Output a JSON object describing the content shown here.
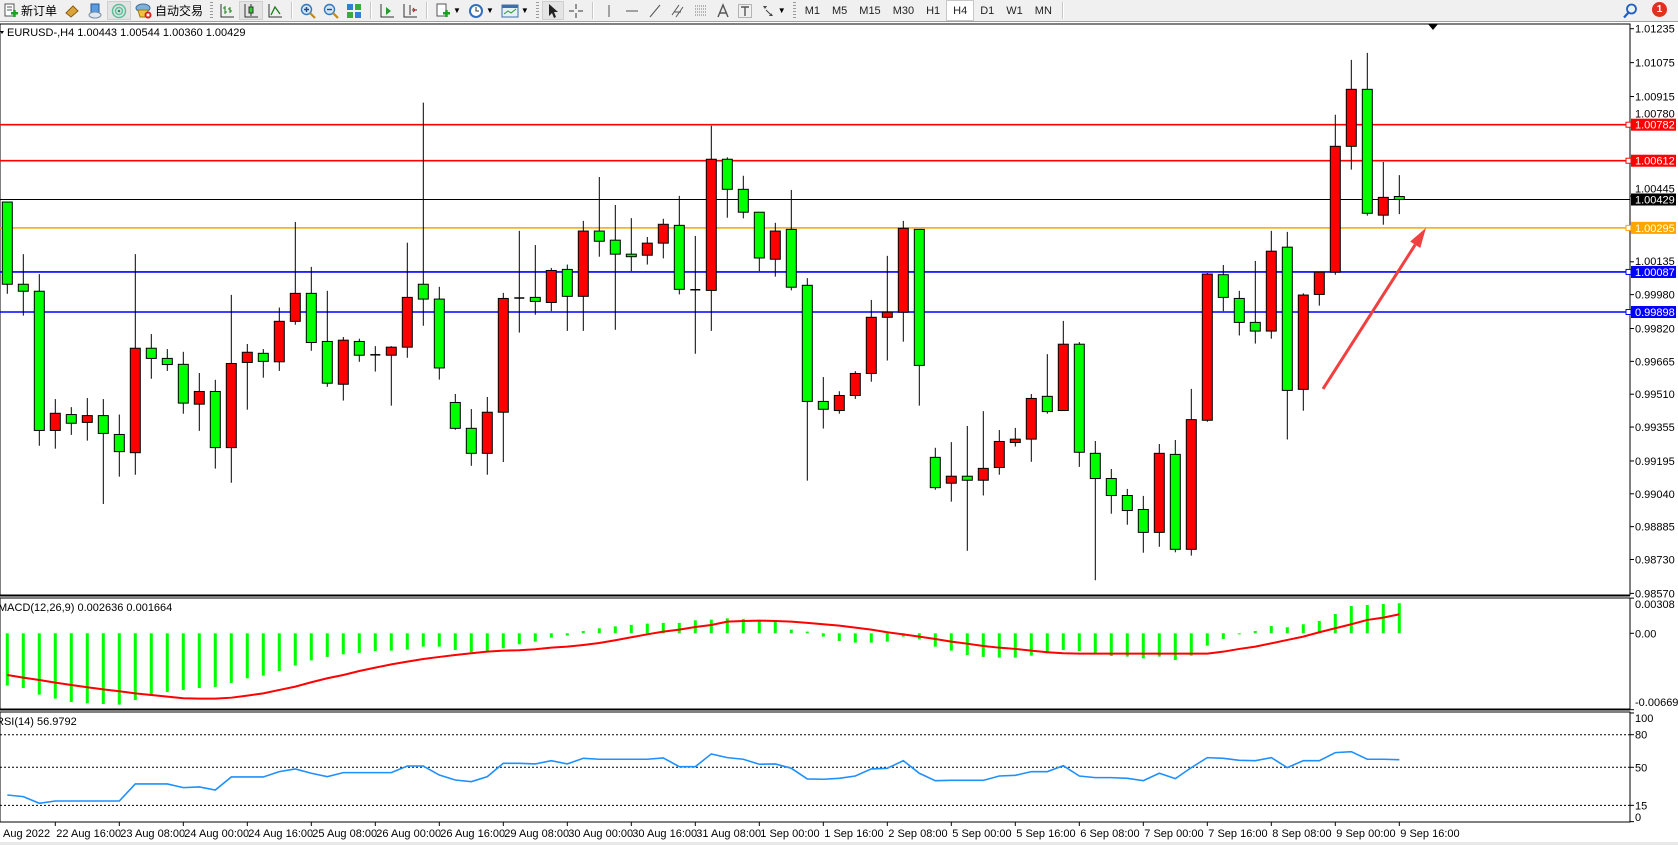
{
  "toolbar": {
    "new_order_label": "新订单",
    "auto_trading_label": "自动交易",
    "timeframes": [
      "M1",
      "M5",
      "M15",
      "M30",
      "H1",
      "H4",
      "D1",
      "W1",
      "MN"
    ],
    "active_timeframe": "H4",
    "notification_count": "1"
  },
  "chart": {
    "header": "EURUSD-,H4  1.00443 1.00544 1.00360 1.00429",
    "symbol": "EURUSD-",
    "timeframe": "H4",
    "bull_color": "#ff0000",
    "bear_color": "#00ff00",
    "price_ticks": [
      "1.01235",
      "1.01075",
      "1.00915",
      "1.00780",
      "1.00445",
      "1.00135",
      "0.99980",
      "0.99820",
      "0.99665",
      "0.99510",
      "0.99355",
      "0.99195",
      "0.99040",
      "0.98885",
      "0.98730",
      "0.98570"
    ],
    "price_range": [
      0.9857,
      1.01235
    ],
    "hlines": [
      {
        "price": "1.00782",
        "color": "#ff0000",
        "text_color": "#ffffff"
      },
      {
        "price": "1.00612",
        "color": "#ff0000",
        "text_color": "#ffffff"
      },
      {
        "price": "1.00429",
        "color": "#000000",
        "text_color": "#ffffff",
        "bid": true
      },
      {
        "price": "1.00295",
        "color": "#ffa500",
        "text_color": "#ffffff"
      },
      {
        "price": "1.00087",
        "color": "#0000ff",
        "text_color": "#ffffff"
      },
      {
        "price": "0.99898",
        "color": "#0000ff",
        "text_color": "#ffffff"
      }
    ],
    "annotation_arrow": {
      "color": "#f04040",
      "from_price": 0.99535,
      "to_price": 1.00295
    },
    "candles": [
      [
        1.00417,
        1.00417,
        0.99984,
        1.00029
      ],
      [
        1.00029,
        1.00171,
        0.99881,
        0.99996
      ],
      [
        0.99996,
        1.00077,
        0.99267,
        0.99339
      ],
      [
        0.99339,
        0.99487,
        0.99253,
        0.9942
      ],
      [
        0.99414,
        0.99449,
        0.99318,
        0.99373
      ],
      [
        0.99377,
        0.99492,
        0.99291,
        0.99409
      ],
      [
        0.99409,
        0.99487,
        0.98992,
        0.99325
      ],
      [
        0.9932,
        0.99414,
        0.99121,
        0.99239
      ],
      [
        0.99234,
        1.00171,
        0.9913,
        0.99727
      ],
      [
        0.99727,
        0.99794,
        0.99583,
        0.99679
      ],
      [
        0.99679,
        0.99723,
        0.9962,
        0.9965
      ],
      [
        0.99651,
        0.9971,
        0.99418,
        0.99468
      ],
      [
        0.99463,
        0.9961,
        0.99337,
        0.99523
      ],
      [
        0.99523,
        0.99578,
        0.99159,
        0.99258
      ],
      [
        0.99258,
        0.99979,
        0.99092,
        0.99655
      ],
      [
        0.9966,
        0.99747,
        0.99437,
        0.99708
      ],
      [
        0.99703,
        0.99723,
        0.99588,
        0.99665
      ],
      [
        0.99663,
        0.99919,
        0.9962,
        0.99854
      ],
      [
        0.99854,
        1.00323,
        0.99838,
        0.99986
      ],
      [
        0.99986,
        1.00111,
        0.99715,
        0.99754
      ],
      [
        0.99759,
        0.99998,
        0.99545,
        0.99562
      ],
      [
        0.99557,
        0.9978,
        0.9948,
        0.99765
      ],
      [
        0.99759,
        0.99772,
        0.99663,
        0.99694
      ],
      [
        0.99696,
        0.99737,
        0.99617,
        0.99696
      ],
      [
        0.99694,
        0.99737,
        0.99456,
        0.99732
      ],
      [
        0.99732,
        1.00225,
        0.99682,
        0.99967
      ],
      [
        1.00029,
        1.00886,
        0.99833,
        0.99959
      ],
      [
        0.99959,
        1.00017,
        0.99579,
        0.99634
      ],
      [
        0.99471,
        0.99511,
        0.99342,
        0.99349
      ],
      [
        0.99349,
        0.9944,
        0.99172,
        0.99231
      ],
      [
        0.99231,
        0.99497,
        0.9913,
        0.99425
      ],
      [
        0.99425,
        0.99988,
        0.9919,
        0.99962
      ],
      [
        0.99964,
        1.00281,
        0.99801,
        0.99964
      ],
      [
        0.99967,
        1.00214,
        0.99885,
        0.99948
      ],
      [
        0.99943,
        1.00106,
        0.99902,
        1.00094
      ],
      [
        1.00099,
        1.00122,
        0.99809,
        0.99972
      ],
      [
        0.99972,
        1.00328,
        0.99809,
        1.0028
      ],
      [
        1.0028,
        1.00535,
        1.00159,
        1.00232
      ],
      [
        1.00237,
        1.00403,
        0.99814,
        1.00171
      ],
      [
        1.00171,
        1.00341,
        1.00091,
        1.00159
      ],
      [
        1.00166,
        1.00252,
        1.00122,
        1.00223
      ],
      [
        1.00223,
        1.00338,
        1.00151,
        1.00312
      ],
      [
        1.00307,
        1.00446,
        0.99981,
        1.00005
      ],
      [
        1.00003,
        1.00257,
        0.99701,
        1.00003
      ],
      [
        1.0,
        1.00777,
        0.99809,
        1.00619
      ],
      [
        1.00619,
        1.00628,
        1.00343,
        1.00477
      ],
      [
        1.00477,
        1.00541,
        1.0034,
        1.00369
      ],
      [
        1.00369,
        1.00369,
        1.00091,
        1.00153
      ],
      [
        1.00147,
        1.00319,
        1.00065,
        1.0028
      ],
      [
        1.00288,
        1.00474,
        1.0,
        1.00015
      ],
      [
        1.00024,
        1.00058,
        0.99102,
        0.99476
      ],
      [
        0.99476,
        0.99591,
        0.99348,
        0.99439
      ],
      [
        0.99433,
        0.99524,
        0.99418,
        0.99504
      ],
      [
        0.99504,
        0.99619,
        0.99488,
        0.99608
      ],
      [
        0.99608,
        0.99955,
        0.99569,
        0.99873
      ],
      [
        0.99873,
        1.00163,
        0.99669,
        0.99897
      ],
      [
        0.99897,
        1.00328,
        0.99758,
        1.00293
      ],
      [
        1.00288,
        1.00288,
        0.99456,
        0.99646
      ],
      [
        0.99212,
        0.99257,
        0.99059,
        0.99069
      ],
      [
        0.9909,
        0.99284,
        0.99003,
        0.99123
      ],
      [
        0.99123,
        0.9936,
        0.98771,
        0.99104
      ],
      [
        0.99104,
        0.9943,
        0.99032,
        0.9916
      ],
      [
        0.99164,
        0.99341,
        0.9913,
        0.99287
      ],
      [
        0.99282,
        0.99351,
        0.99263,
        0.99298
      ],
      [
        0.99298,
        0.99511,
        0.99191,
        0.9949
      ],
      [
        0.995,
        0.99699,
        0.99418,
        0.99428
      ],
      [
        0.99433,
        0.99856,
        0.99433,
        0.99746
      ],
      [
        0.99746,
        0.99756,
        0.99167,
        0.99236
      ],
      [
        0.99231,
        0.99289,
        0.98632,
        0.99112
      ],
      [
        0.99112,
        0.99157,
        0.98946,
        0.99032
      ],
      [
        0.99032,
        0.99063,
        0.98894,
        0.98961
      ],
      [
        0.98966,
        0.9903,
        0.98762,
        0.98858
      ],
      [
        0.98858,
        0.99275,
        0.9879,
        0.99231
      ],
      [
        0.99226,
        0.99294,
        0.98764,
        0.98778
      ],
      [
        0.98778,
        0.99535,
        0.98748,
        0.9939
      ],
      [
        0.99387,
        1.00082,
        0.9938,
        1.00077
      ],
      [
        1.00074,
        1.0012,
        0.99902,
        0.99967
      ],
      [
        0.99962,
        0.99998,
        0.99787,
        0.99849
      ],
      [
        0.99849,
        1.00139,
        0.99749,
        0.99808
      ],
      [
        0.99808,
        1.00281,
        0.99772,
        1.00185
      ],
      [
        1.00204,
        1.00276,
        0.99296,
        0.99528
      ],
      [
        0.99533,
        0.99986,
        0.99432,
        0.99978
      ],
      [
        0.99981,
        1.00086,
        0.99928,
        1.00086
      ],
      [
        1.00086,
        1.00829,
        1.00074,
        1.0068
      ],
      [
        1.0068,
        1.01088,
        1.0057,
        1.00949
      ],
      [
        1.00949,
        1.01121,
        1.00353,
        1.00364
      ],
      [
        1.00355,
        1.00606,
        1.0031,
        1.00439
      ],
      [
        1.00443,
        1.00544,
        1.0036,
        1.00429
      ]
    ],
    "time_labels": [
      {
        "index": -1,
        "text": "Aug 2022"
      },
      {
        "index": 3,
        "text": "22 Aug 16:00"
      },
      {
        "index": 7,
        "text": "23 Aug 08:00"
      },
      {
        "index": 11,
        "text": "24 Aug 00:00"
      },
      {
        "index": 15,
        "text": "24 Aug 16:00"
      },
      {
        "index": 19,
        "text": "25 Aug 08:00"
      },
      {
        "index": 23,
        "text": "26 Aug 00:00"
      },
      {
        "index": 27,
        "text": "26 Aug 16:00"
      },
      {
        "index": 31,
        "text": "29 Aug 08:00"
      },
      {
        "index": 35,
        "text": "30 Aug 00:00"
      },
      {
        "index": 39,
        "text": "30 Aug 16:00"
      },
      {
        "index": 43,
        "text": "31 Aug 08:00"
      },
      {
        "index": 47,
        "text": "1 Sep 00:00"
      },
      {
        "index": 51,
        "text": "1 Sep 16:00"
      },
      {
        "index": 55,
        "text": "2 Sep 08:00"
      },
      {
        "index": 59,
        "text": "5 Sep 00:00"
      },
      {
        "index": 63,
        "text": "5 Sep 16:00"
      },
      {
        "index": 67,
        "text": "6 Sep 08:00"
      },
      {
        "index": 71,
        "text": "7 Sep 00:00"
      },
      {
        "index": 75,
        "text": "7 Sep 16:00"
      },
      {
        "index": 79,
        "text": "8 Sep 08:00"
      },
      {
        "index": 83,
        "text": "9 Sep 00:00"
      },
      {
        "index": 87,
        "text": "9 Sep 16:00"
      }
    ]
  },
  "macd": {
    "header": "MACD(12,26,9) 0.002636 0.001664",
    "axis_labels": [
      "0.00308",
      "0.00",
      "-0.006692"
    ],
    "range": [
      -0.006692,
      0.00308
    ],
    "hist_color": "#00ff00",
    "signal_color": "#ff0000",
    "histogram": [
      -0.00458,
      -0.00479,
      -0.00537,
      -0.00572,
      -0.00602,
      -0.00613,
      -0.00619,
      -0.00625,
      -0.00584,
      -0.00546,
      -0.00514,
      -0.00496,
      -0.00479,
      -0.0047,
      -0.00435,
      -0.00394,
      -0.00371,
      -0.0033,
      -0.00283,
      -0.00237,
      -0.00207,
      -0.00184,
      -0.00172,
      -0.00155,
      -0.00152,
      -0.00143,
      -0.00117,
      -0.00117,
      -0.00146,
      -0.00166,
      -0.00166,
      -0.00131,
      -0.00096,
      -0.00073,
      -0.00038,
      -0.0002,
      0.0002,
      0.00044,
      0.00061,
      0.00073,
      0.00085,
      0.00091,
      0.00091,
      0.00114,
      0.0012,
      0.00131,
      0.00126,
      0.00114,
      0.00108,
      0.00032,
      0.00015,
      -0.00029,
      -0.00067,
      -0.00082,
      -0.00082,
      -0.00073,
      -0.00029,
      -0.00053,
      -0.00117,
      -0.00152,
      -0.0019,
      -0.00207,
      -0.00213,
      -0.00213,
      -0.00196,
      -0.00175,
      -0.00146,
      -0.00155,
      -0.00184,
      -0.00199,
      -0.00204,
      -0.00219,
      -0.00204,
      -0.00234,
      -0.00196,
      -0.00108,
      -0.0005,
      -9e-05,
      0.0002,
      0.00064,
      0.00053,
      0.00079,
      0.00108,
      0.00169,
      0.00239,
      0.00248,
      0.00257,
      0.002636
    ],
    "signal": [
      -0.00365,
      -0.00388,
      -0.00409,
      -0.00432,
      -0.00453,
      -0.00473,
      -0.00491,
      -0.00508,
      -0.00526,
      -0.0054,
      -0.00555,
      -0.00569,
      -0.00572,
      -0.00572,
      -0.00564,
      -0.00546,
      -0.00526,
      -0.00496,
      -0.00467,
      -0.00429,
      -0.00394,
      -0.00365,
      -0.0033,
      -0.00301,
      -0.00272,
      -0.00248,
      -0.00225,
      -0.00207,
      -0.0019,
      -0.00175,
      -0.00161,
      -0.00152,
      -0.00149,
      -0.0014,
      -0.00126,
      -0.00117,
      -0.00102,
      -0.00085,
      -0.00061,
      -0.00035,
      -9e-05,
      0.00015,
      0.00032,
      0.00055,
      0.00073,
      0.00102,
      0.00108,
      0.00111,
      0.00108,
      0.00102,
      0.00091,
      0.00079,
      0.00067,
      0.0005,
      0.00032,
      9e-05,
      -9e-05,
      -0.00029,
      -0.0005,
      -0.00073,
      -0.00091,
      -0.00111,
      -0.00126,
      -0.00137,
      -0.00152,
      -0.00166,
      -0.00175,
      -0.00178,
      -0.00178,
      -0.00178,
      -0.00178,
      -0.00178,
      -0.00178,
      -0.00178,
      -0.00178,
      -0.00178,
      -0.00161,
      -0.00137,
      -0.00117,
      -0.00088,
      -0.00058,
      -0.00029,
      9e-05,
      0.00044,
      0.00079,
      0.00117,
      0.00137,
      0.001664
    ]
  },
  "rsi": {
    "header": "RSI(14) 56.9792",
    "axis_labels": [
      "100",
      "80",
      "50",
      "15",
      "0"
    ],
    "levels": [
      80,
      50,
      15
    ],
    "range": [
      0,
      100
    ],
    "line_color": "#1e90ff",
    "values": [
      24.5,
      23.0,
      16.9,
      19.0,
      19.0,
      19.0,
      19.0,
      19.0,
      34.7,
      34.7,
      34.7,
      31.3,
      31.9,
      29.1,
      41.1,
      41.1,
      41.1,
      46.0,
      48.5,
      44.5,
      41.4,
      45.1,
      45.1,
      45.1,
      45.1,
      51.2,
      51.2,
      42.9,
      38.3,
      36.8,
      41.4,
      53.7,
      53.7,
      53.1,
      56.1,
      53.1,
      58.3,
      57.4,
      57.4,
      57.4,
      57.4,
      58.6,
      50.6,
      50.6,
      62.3,
      58.9,
      57.4,
      52.8,
      53.1,
      49.1,
      39.3,
      39.0,
      39.9,
      42.0,
      48.5,
      49.1,
      56.1,
      44.5,
      37.7,
      38.0,
      38.0,
      38.0,
      42.0,
      42.6,
      46.0,
      46.0,
      51.5,
      42.0,
      40.5,
      40.5,
      39.9,
      37.7,
      44.5,
      39.6,
      49.7,
      58.9,
      58.3,
      56.4,
      56.1,
      58.9,
      49.7,
      56.1,
      56.1,
      63.5,
      64.4,
      57.4,
      57.4,
      56.98
    ]
  }
}
